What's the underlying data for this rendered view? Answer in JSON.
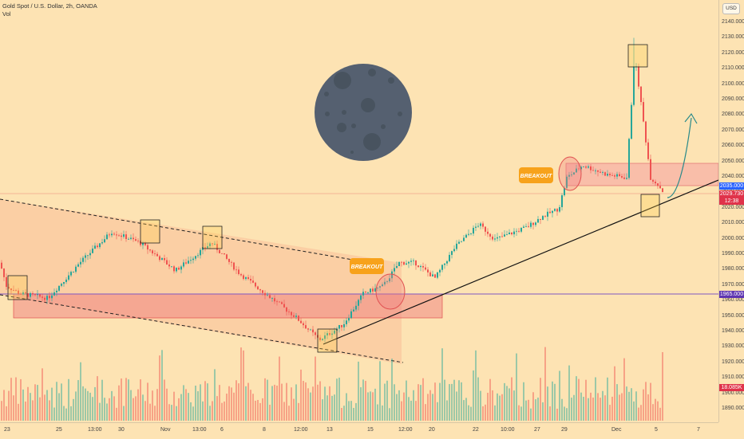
{
  "header": {
    "title": "Gold Spot / U.S. Dollar, 2h, OANDA",
    "indicator": "Vol"
  },
  "price_axis": {
    "currency": "USD",
    "ticks": [
      "2140.000",
      "2130.000",
      "2120.000",
      "2110.000",
      "2100.000",
      "2090.000",
      "2080.000",
      "2070.000",
      "2060.000",
      "2050.000",
      "2040.000",
      "2030.000",
      "2020.000",
      "2010.000",
      "2000.000",
      "1990.000",
      "1980.000",
      "1970.000",
      "1960.000",
      "1950.000",
      "1940.000",
      "1930.000",
      "1920.000",
      "1910.000",
      "1900.000",
      "1890.000"
    ],
    "tag_level": "2035.000",
    "tag_price": "2029.730",
    "tag_countdown": "12:38",
    "tag_support": "1965.000",
    "tag_volume": "18.085K"
  },
  "time_axis": {
    "ticks": [
      "23",
      "25",
      "13:00",
      "30",
      "Nov",
      "13:00",
      "6",
      "8",
      "12:00",
      "13",
      "15",
      "12:00",
      "20",
      "22",
      "10:00",
      "27",
      "29",
      "Dec",
      "5",
      "7"
    ]
  },
  "annotations": {
    "breakout_1": "BREAKOUT",
    "breakout_2": "BREAKOUT"
  },
  "colors": {
    "background": "#fde3b3",
    "bull": "#26a69a",
    "bear": "#ef5350",
    "zone": "#f5a88a",
    "support_line": "#7e57c2",
    "tag_blue": "#2962ff",
    "tag_red": "#e0334a"
  },
  "icons": [
    "moon-icon",
    "arrow-up-icon"
  ],
  "chart_data": {
    "type": "candlestick",
    "title": "Gold Spot / U.S. Dollar, 2h, OANDA",
    "x_axis_ticks": [
      "23",
      "25",
      "13:00",
      "30",
      "Nov",
      "13:00",
      "6",
      "8",
      "12:00",
      "13",
      "15",
      "12:00",
      "20",
      "22",
      "10:00",
      "27",
      "29",
      "Dec",
      "5",
      "7"
    ],
    "y_range": [
      1885,
      2148
    ],
    "levels": {
      "resistance_zone": [
        2035,
        2050
      ],
      "support_line": 1965,
      "current_price": 2029.73
    },
    "price_path": [
      [
        0,
        1985
      ],
      [
        8,
        1970
      ],
      [
        25,
        1965
      ],
      [
        60,
        1962
      ],
      [
        100,
        1985
      ],
      [
        140,
        2005
      ],
      [
        175,
        1998
      ],
      [
        220,
        1980
      ],
      [
        265,
        1998
      ],
      [
        300,
        1978
      ],
      [
        340,
        1962
      ],
      [
        370,
        1950
      ],
      [
        400,
        1935
      ],
      [
        430,
        1945
      ],
      [
        455,
        1965
      ],
      [
        480,
        1970
      ],
      [
        500,
        1985
      ],
      [
        520,
        1985
      ],
      [
        545,
        1975
      ],
      [
        570,
        1995
      ],
      [
        600,
        2010
      ],
      [
        620,
        2000
      ],
      [
        660,
        2008
      ],
      [
        680,
        2015
      ],
      [
        700,
        2020
      ],
      [
        710,
        2040
      ],
      [
        730,
        2048
      ],
      [
        760,
        2042
      ],
      [
        785,
        2040
      ],
      [
        795,
        2120
      ],
      [
        805,
        2080
      ],
      [
        815,
        2040
      ],
      [
        825,
        2035
      ],
      [
        832,
        2030
      ]
    ],
    "volume_series": "Vol"
  }
}
